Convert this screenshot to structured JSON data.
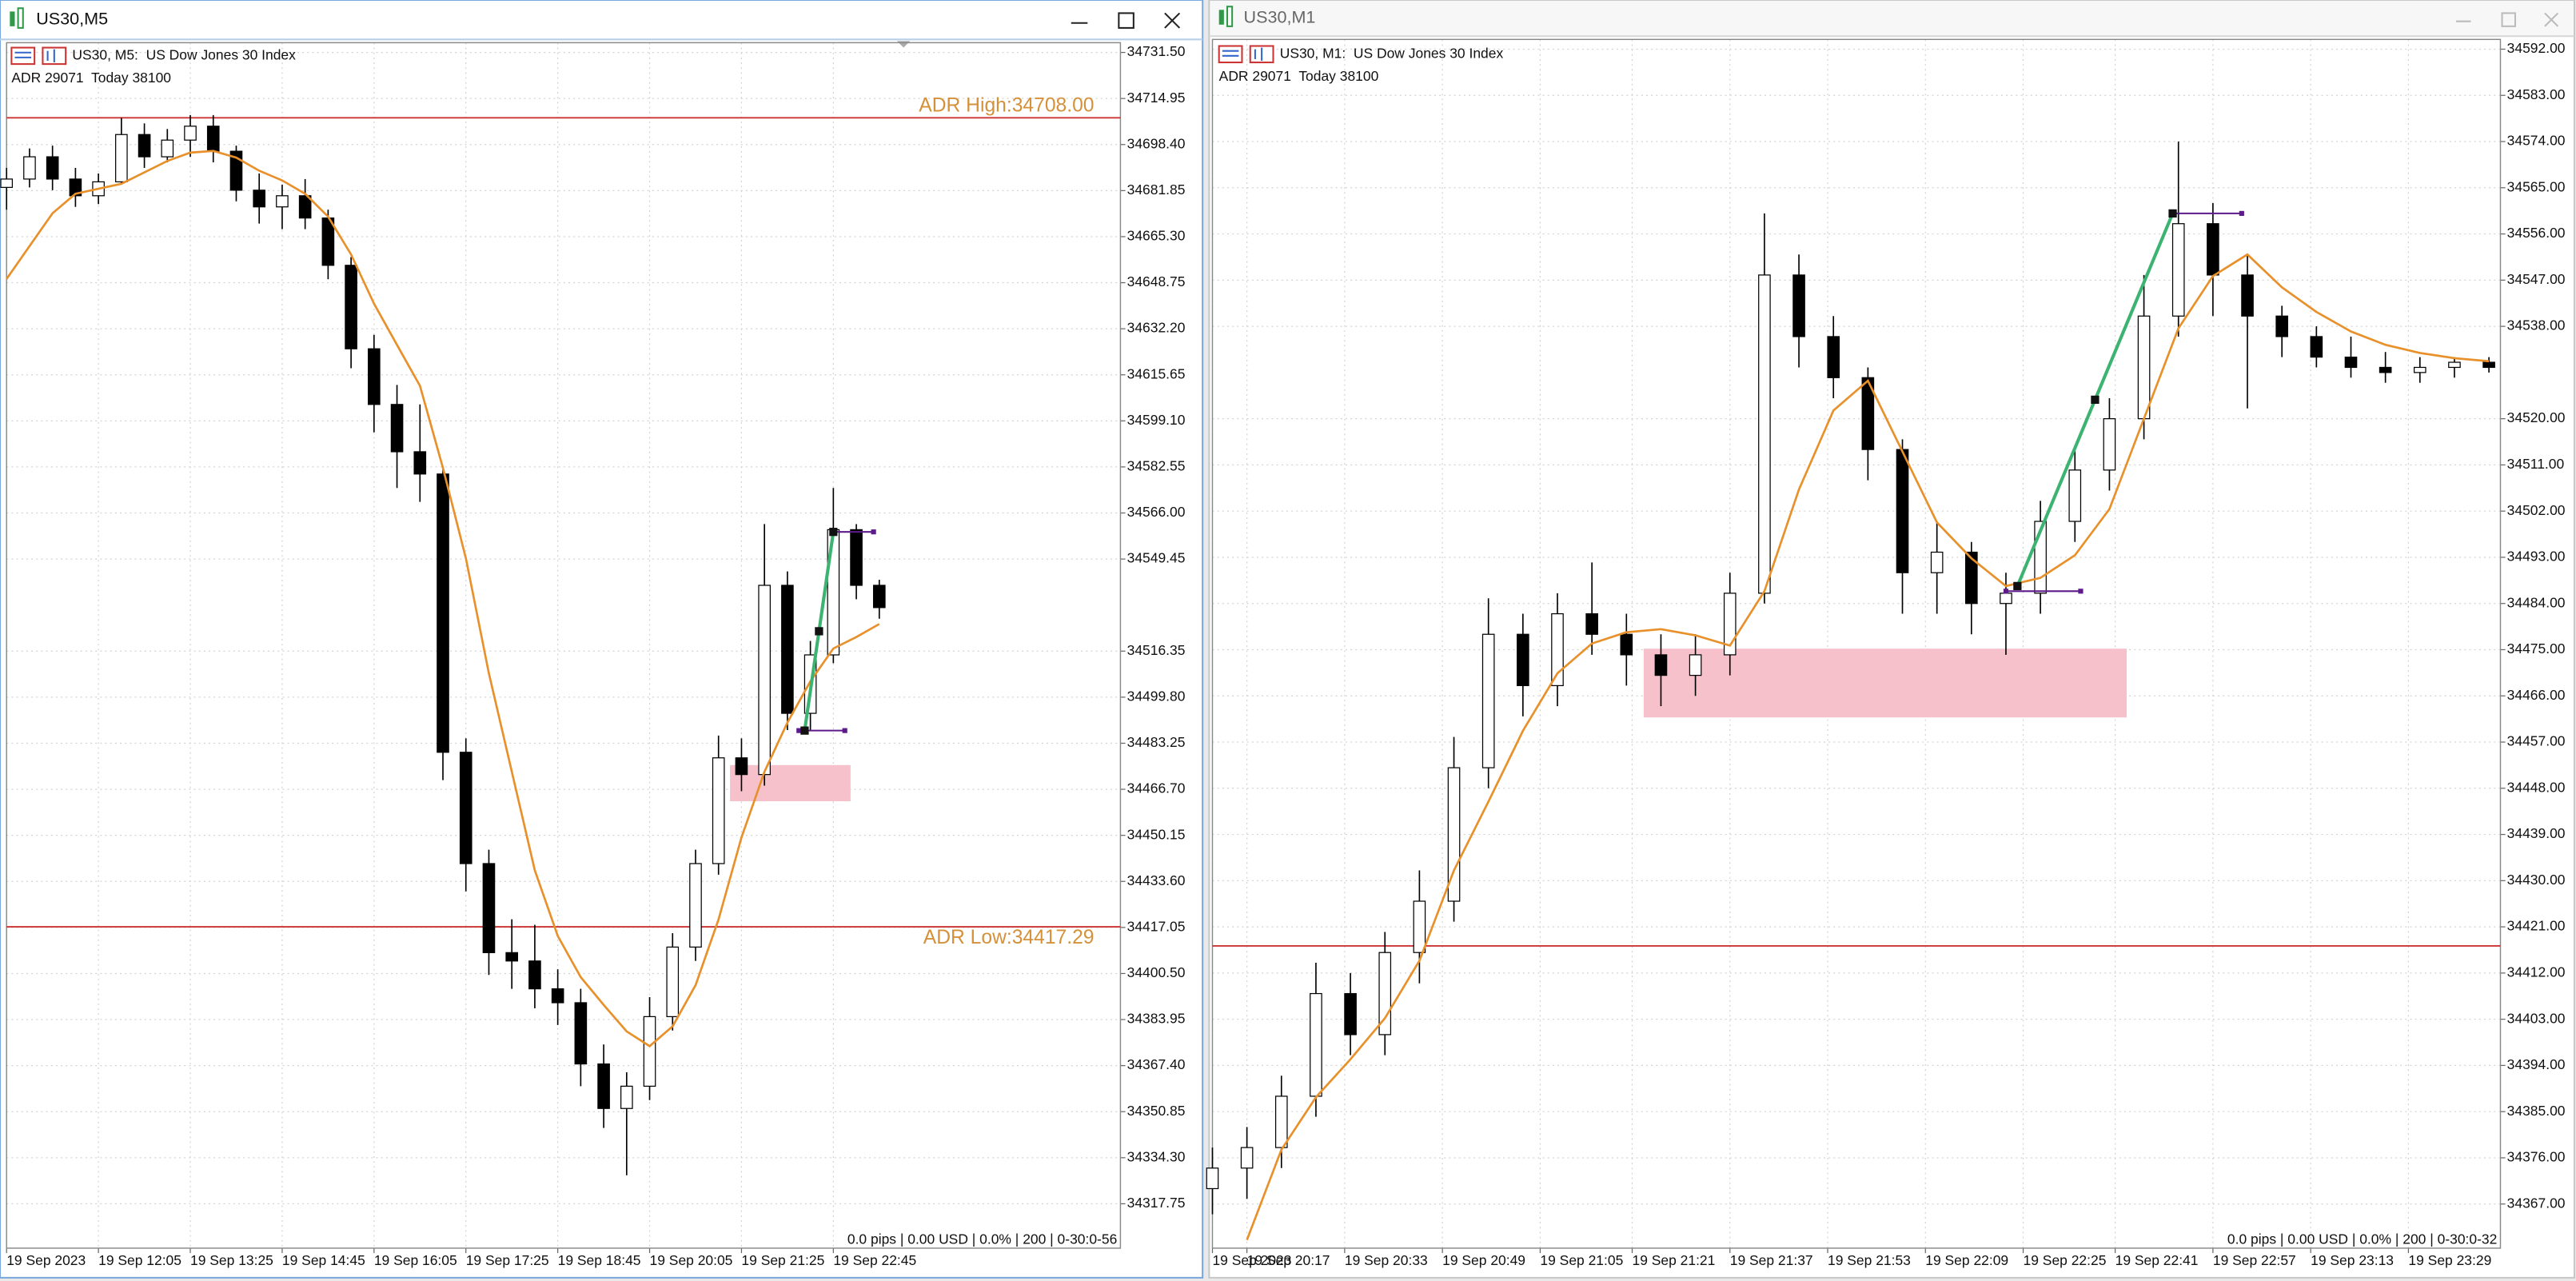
{
  "windows": [
    {
      "title": "US30,M5"
    },
    {
      "title": "US30,M1"
    }
  ],
  "chart_data": [
    {
      "type": "candlestick",
      "symbol": "US30, M5:  US Dow Jones 30 Index",
      "info": "ADR 29071  Today 38100",
      "status": "0.0 pips | 0.00 USD | 0.0% | 200 | 0-30:0-56",
      "grid": true,
      "xlim": [
        0,
        194
      ],
      "xticks": [
        {
          "value": 0,
          "label": "19 Sep 2023"
        },
        {
          "value": 16,
          "label": "19 Sep 12:05"
        },
        {
          "value": 32,
          "label": "19 Sep 13:25"
        },
        {
          "value": 48,
          "label": "19 Sep 14:45"
        },
        {
          "value": 64,
          "label": "19 Sep 16:05"
        },
        {
          "value": 80,
          "label": "19 Sep 17:25"
        },
        {
          "value": 96,
          "label": "19 Sep 18:45"
        },
        {
          "value": 112,
          "label": "19 Sep 20:05"
        },
        {
          "value": 128,
          "label": "19 Sep 21:25"
        },
        {
          "value": 144,
          "label": "19 Sep 22:45"
        }
      ],
      "ylim": [
        34301.8,
        34735.0
      ],
      "yticks": [
        {
          "value": 34731.5,
          "label": "34731.50"
        },
        34714.95,
        {
          "value": 34698.4,
          "label": "34698.40"
        },
        34681.85,
        {
          "value": 34665.3,
          "label": "34665.30"
        },
        34648.75,
        {
          "value": 34632.2,
          "label": "34632.20"
        },
        34615.65,
        {
          "value": 34599.1,
          "label": "34599.10"
        },
        34582.55,
        {
          "value": 34566,
          "label": "34566.00"
        },
        34549.45,
        34516.35,
        {
          "value": 34499.8,
          "label": "34499.80"
        },
        34483.25,
        {
          "value": 34466.7,
          "label": "34466.70"
        },
        34450.15,
        {
          "value": 34433.6,
          "label": "34433.60"
        },
        34417.05,
        {
          "value": 34400.5,
          "label": "34400.50"
        },
        34383.95,
        {
          "value": 34367.4,
          "label": "34367.40"
        },
        34350.85,
        {
          "value": 34334.3,
          "label": "34334.30"
        },
        34317.75
      ],
      "candles": {
        "x": [
          0,
          4,
          8,
          12,
          16,
          20,
          24,
          28,
          32,
          36,
          40,
          44,
          48,
          52,
          56,
          60,
          64,
          68,
          72,
          76,
          80,
          84,
          88,
          92,
          96,
          100,
          104,
          108,
          112,
          116,
          120,
          124,
          128,
          132,
          136,
          140,
          144,
          148,
          152
        ],
        "open": [
          34683,
          34686,
          34694,
          34686,
          34680,
          34685,
          34702,
          34694,
          34700,
          34705,
          34696,
          34682,
          34676,
          34680,
          34672,
          34655,
          34625,
          34605,
          34588,
          34580,
          34480,
          34440,
          34408,
          34405,
          34395,
          34390,
          34368,
          34352,
          34360,
          34385,
          34410,
          34440,
          34478,
          34472,
          34540,
          34494,
          34515,
          34560,
          34540
        ],
        "high": [
          34690,
          34697,
          34698,
          34690,
          34688,
          34708,
          34706,
          34704,
          34709,
          34709,
          34698,
          34688,
          34684,
          34686,
          34675,
          34658,
          34630,
          34612,
          34605,
          34582,
          34485,
          34445,
          34420,
          34418,
          34402,
          34395,
          34375,
          34365,
          34392,
          34415,
          34445,
          34486,
          34485,
          34562,
          34545,
          34520,
          34575,
          34562,
          34542
        ],
        "low": [
          34675,
          34683,
          34682,
          34676,
          34677,
          34684,
          34690,
          34692,
          34694,
          34692,
          34678,
          34670,
          34668,
          34668,
          34650,
          34618,
          34595,
          34575,
          34570,
          34470,
          34430,
          34400,
          34395,
          34388,
          34382,
          34360,
          34345,
          34328,
          34355,
          34380,
          34405,
          34436,
          34466,
          34468,
          34488,
          34488,
          34512,
          34535,
          34528
        ],
        "close": [
          34686,
          34694,
          34686,
          34680,
          34685,
          34702,
          34694,
          34700,
          34705,
          34696,
          34682,
          34676,
          34680,
          34672,
          34655,
          34625,
          34605,
          34588,
          34580,
          34480,
          34440,
          34408,
          34405,
          34395,
          34390,
          34368,
          34352,
          34360,
          34385,
          34410,
          34440,
          34478,
          34472,
          34540,
          34494,
          34515,
          34560,
          34540,
          34532
        ]
      },
      "ma": {
        "color": "#e8902a",
        "values": [
          34650.1,
          34661.9,
          34673.7,
          34680.7,
          34682.5,
          34684.3,
          34688.4,
          34692.5,
          34695.5,
          34696.1,
          34693.7,
          34689.0,
          34685.5,
          34680.7,
          34672.5,
          34658.9,
          34641.2,
          34626.4,
          34611.7,
          34582.2,
          34549.7,
          34508.4,
          34473.0,
          34437.6,
          34414.0,
          34399.2,
          34389.2,
          34379.7,
          34374.4,
          34381.5,
          34396.3,
          34419.9,
          34449.4,
          34473.0,
          34490.7,
          34505.5,
          34517.3,
          34521.4,
          34526.1
        ]
      },
      "levels": [
        {
          "value": 34708.0,
          "label": "ADR High:34708.00",
          "color": "#cc3333",
          "label_color": "#d4913a"
        },
        {
          "value": 34417.29,
          "label": "ADR Low:34417.29",
          "color": "#cc3333",
          "label_color": "#d4913a"
        }
      ],
      "zones": [
        {
          "x": [
            126,
            147
          ],
          "y": [
            34462.4,
            34475.4
          ],
          "color": "#f7c1cc"
        }
      ],
      "trendlines": [
        {
          "x": [
            139,
            144
          ],
          "y": [
            34487.8,
            34559.2
          ],
          "color": "#3cb371"
        }
      ],
      "hlines": [
        {
          "x": [
            144,
            151
          ],
          "y": 34559.2,
          "color": "#5c1a8a"
        },
        {
          "x": [
            138,
            146
          ],
          "y": 34487.8,
          "color": "#5c1a8a"
        }
      ]
    },
    {
      "type": "candlestick",
      "symbol": "US30, M1:  US Dow Jones 30 Index",
      "info": "ADR 29071  Today 38100",
      "status": "0.0 pips | 0.00 USD | 0.0% | 200 | 0-30:0-32",
      "grid": true,
      "xlim": [
        0,
        224
      ],
      "xticks": [
        {
          "value": 0,
          "label": "19 Sep 2023"
        },
        {
          "value": 6,
          "label": "19 Sep 20:17"
        },
        {
          "value": 23,
          "label": "19 Sep 20:33"
        },
        {
          "value": 40,
          "label": "19 Sep 20:49"
        },
        {
          "value": 57,
          "label": "19 Sep 21:05"
        },
        {
          "value": 73,
          "label": "19 Sep 21:21"
        },
        {
          "value": 90,
          "label": "19 Sep 21:37"
        },
        {
          "value": 107,
          "label": "19 Sep 21:53"
        },
        {
          "value": 124,
          "label": "19 Sep 22:09"
        },
        {
          "value": 141,
          "label": "19 Sep 22:25"
        },
        {
          "value": 157,
          "label": "19 Sep 22:41"
        },
        {
          "value": 174,
          "label": "19 Sep 22:57"
        },
        {
          "value": 191,
          "label": "19 Sep 23:13"
        },
        {
          "value": 208,
          "label": "19 Sep 23:29"
        }
      ],
      "ylim": [
        34358.4,
        34593.9
      ],
      "yticks": [
        {
          "value": 34592,
          "label": "34592.00"
        },
        {
          "value": 34583,
          "label": "34583.00"
        },
        {
          "value": 34574,
          "label": "34574.00"
        },
        {
          "value": 34565,
          "label": "34565.00"
        },
        {
          "value": 34556,
          "label": "34556.00"
        },
        {
          "value": 34547,
          "label": "34547.00"
        },
        {
          "value": 34538,
          "label": "34538.00"
        },
        {
          "value": 34520,
          "label": "34520.00"
        },
        {
          "value": 34511,
          "label": "34511.00"
        },
        {
          "value": 34502,
          "label": "34502.00"
        },
        {
          "value": 34493,
          "label": "34493.00"
        },
        {
          "value": 34484,
          "label": "34484.00"
        },
        {
          "value": 34475,
          "label": "34475.00"
        },
        {
          "value": 34466,
          "label": "34466.00"
        },
        {
          "value": 34457,
          "label": "34457.00"
        },
        {
          "value": 34448,
          "label": "34448.00"
        },
        {
          "value": 34439,
          "label": "34439.00"
        },
        {
          "value": 34430,
          "label": "34430.00"
        },
        {
          "value": 34421,
          "label": "34421.00"
        },
        {
          "value": 34412,
          "label": "34412.00"
        },
        {
          "value": 34403,
          "label": "34403.00"
        },
        {
          "value": 34394,
          "label": "34394.00"
        },
        {
          "value": 34385,
          "label": "34385.00"
        },
        {
          "value": 34376,
          "label": "34376.00"
        },
        {
          "value": 34367,
          "label": "34367.00"
        }
      ],
      "candles": {
        "x": [
          0,
          6,
          12,
          18,
          24,
          30,
          36,
          42,
          48,
          54,
          60,
          66,
          72,
          78,
          84,
          90,
          96,
          102,
          108,
          114,
          120,
          126,
          132,
          138,
          144,
          150,
          156,
          162,
          168,
          174,
          180,
          186,
          192,
          198,
          204,
          210,
          216,
          222
        ],
        "open": [
          34370,
          34374,
          34378,
          34388,
          34408,
          34400,
          34416,
          34426,
          34452,
          34478,
          34468,
          34482,
          34478,
          34474,
          34470,
          34474,
          34486,
          34548,
          34536,
          34528,
          34514,
          34490,
          34494,
          34484,
          34486,
          34500,
          34510,
          34520,
          34540,
          34558,
          34548,
          34540,
          34536,
          34532,
          34530,
          34529,
          34530,
          34531
        ],
        "high": [
          34378,
          34382,
          34392,
          34414,
          34412,
          34420,
          34432,
          34458,
          34485,
          34482,
          34486,
          34492,
          34482,
          34478,
          34478,
          34490,
          34560,
          34552,
          34540,
          34530,
          34516,
          34500,
          34496,
          34490,
          34504,
          34514,
          34524,
          34548,
          34574,
          34562,
          34552,
          34542,
          34538,
          34536,
          34533,
          34532,
          34532,
          34532
        ],
        "low": [
          34365,
          34368,
          34374,
          34384,
          34396,
          34396,
          34410,
          34422,
          34448,
          34462,
          34464,
          34474,
          34468,
          34464,
          34466,
          34470,
          34484,
          34530,
          34524,
          34508,
          34482,
          34482,
          34478,
          34474,
          34482,
          34496,
          34506,
          34516,
          34536,
          34540,
          34522,
          34532,
          34530,
          34528,
          34527,
          34527,
          34528,
          34529
        ],
        "close": [
          34374,
          34378,
          34388,
          34408,
          34400,
          34416,
          34426,
          34452,
          34478,
          34468,
          34482,
          34478,
          34474,
          34470,
          34474,
          34486,
          34548,
          34536,
          34528,
          34514,
          34490,
          34494,
          34484,
          34486,
          34500,
          34510,
          34520,
          34540,
          34558,
          34548,
          34540,
          34536,
          34532,
          34530,
          34529,
          34530,
          34531,
          34530
        ]
      },
      "ma": {
        "color": "#e8902a",
        "values": [
          null,
          34360.0,
          34377.6,
          34387.8,
          34395.2,
          34403.2,
          34414.4,
          34432.0,
          34445.4,
          34459.2,
          34470.4,
          34476.2,
          34478.4,
          34479.0,
          34477.8,
          34475.8,
          34486.4,
          34506.2,
          34521.6,
          34527.4,
          34513.6,
          34499.8,
          34492.8,
          34487.4,
          34489.0,
          34493.4,
          34502.4,
          34520.0,
          34537.6,
          34547.8,
          34552.0,
          34545.6,
          34540.8,
          34537.0,
          34534.4,
          34532.8,
          34531.8,
          34531.2
        ]
      },
      "levels": [
        {
          "value": 34417.29,
          "color": "#cc3333"
        }
      ],
      "zones": [
        {
          "x": [
            75,
            159
          ],
          "y": [
            34461.8,
            34475.2
          ],
          "color": "#f7c1cc"
        }
      ],
      "trendlines": [
        {
          "x": [
            140,
            167
          ],
          "y": [
            34487.4,
            34560.0
          ],
          "color": "#3cb371"
        }
      ],
      "hlines": [
        {
          "x": [
            167,
            179
          ],
          "y": 34560.0,
          "color": "#5c1a8a"
        },
        {
          "x": [
            138,
            151
          ],
          "y": 34486.4,
          "color": "#5c1a8a"
        }
      ]
    }
  ]
}
